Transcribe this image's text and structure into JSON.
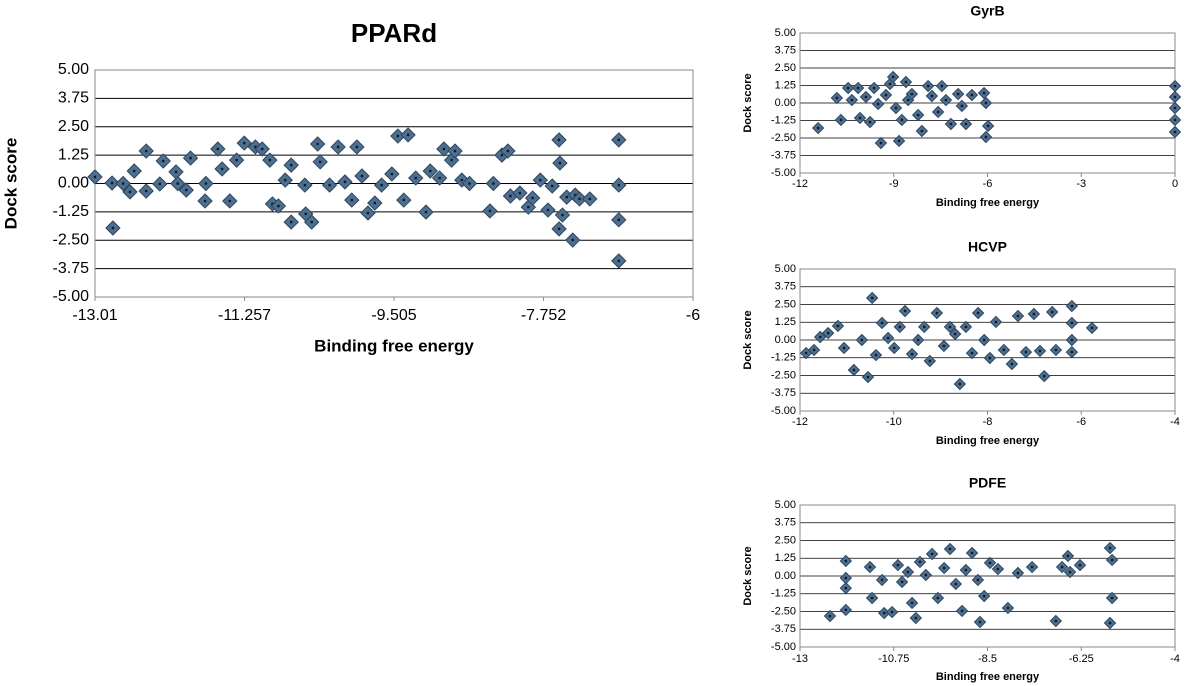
{
  "chart_data": [
    {
      "type": "scatter",
      "title": "PPARd",
      "x_label": "Binding free energy",
      "y_label": "Dock score",
      "color": "#4f6f8f",
      "grid": true,
      "xlim": [
        -13.01,
        -6
      ],
      "ylim": [
        -5,
        5
      ],
      "xticks": [
        -13.01,
        -11.257,
        -9.505,
        -7.752,
        -6
      ],
      "yticks": [
        {
          "value": 5,
          "label": "5.00"
        },
        3.75,
        {
          "value": 2.5,
          "label": "2.50"
        },
        1.25,
        {
          "value": 0,
          "label": "0.00"
        },
        -1.25,
        {
          "value": -2.5,
          "label": "-2.50"
        },
        -3.75,
        {
          "value": -5,
          "label": "-5.00"
        }
      ],
      "x": [
        -13.01,
        -12.8,
        -12.81,
        -12.68,
        -12.6,
        -12.55,
        -12.41,
        -12.41,
        -12.25,
        -12.21,
        -12.06,
        -12.04,
        -11.94,
        -11.89,
        -11.72,
        -11.71,
        -11.57,
        -11.52,
        -11.43,
        -11.35,
        -11.26,
        -11.13,
        -11.05,
        -10.96,
        -10.93,
        -10.86,
        -10.78,
        -10.71,
        -10.71,
        -10.55,
        -10.54,
        -10.47,
        -10.4,
        -10.37,
        -10.26,
        -10.16,
        -10.08,
        -10.0,
        -9.94,
        -9.88,
        -9.81,
        -9.73,
        -9.65,
        -9.53,
        -9.46,
        -9.34,
        -9.39,
        -9.25,
        -9.13,
        -9.08,
        -8.97,
        -8.92,
        -8.83,
        -8.79,
        -8.71,
        -8.62,
        -8.38,
        -8.34,
        -8.24,
        -8.17,
        -8.14,
        -8.03,
        -7.93,
        -7.88,
        -7.79,
        -7.7,
        -7.65,
        -7.57,
        -7.57,
        -7.56,
        -7.53,
        -7.48,
        -7.41,
        -7.38,
        -7.33,
        -7.21,
        -6.87,
        -6.87,
        -6.87,
        -6.87
      ],
      "y": [
        0.29,
        -1.96,
        0.02,
        0,
        -0.37,
        0.55,
        1.43,
        -0.33,
        -0.02,
        0.99,
        0.51,
        0,
        -0.29,
        1.12,
        -0.77,
        0,
        1.52,
        0.64,
        -0.77,
        1.03,
        1.78,
        1.61,
        1.52,
        1.03,
        -0.9,
        -0.99,
        0.15,
        0.81,
        -1.7,
        -0.07,
        -1.34,
        -1.7,
        1.74,
        0.95,
        -0.07,
        1.61,
        0.07,
        -0.73,
        1.61,
        0.33,
        -1.3,
        -0.86,
        -0.07,
        0.42,
        2.09,
        2.14,
        -0.73,
        0.24,
        -1.26,
        0.55,
        0.24,
        1.52,
        1.03,
        1.43,
        0.15,
        0,
        -1.21,
        0,
        1.25,
        1.43,
        -0.55,
        -0.42,
        -1.04,
        -0.64,
        0.15,
        -1.17,
        -0.11,
        1.92,
        -2.0,
        0.9,
        -1.39,
        -0.6,
        -2.49,
        -0.51,
        -0.68,
        -0.68,
        1.92,
        -0.07,
        -1.6,
        -3.41
      ]
    },
    {
      "type": "scatter",
      "title": "GyrB",
      "x_label": "Binding free energy",
      "y_label": "Dock score",
      "color": "#4f6f8f",
      "grid": true,
      "xlim": [
        -12,
        0
      ],
      "ylim": [
        -5,
        5
      ],
      "xticks": [
        -12,
        -9,
        -6,
        -3,
        0
      ],
      "yticks": [
        {
          "value": 5,
          "label": "5.00"
        },
        3.75,
        {
          "value": 2.5,
          "label": "2.50"
        },
        1.25,
        {
          "value": 0,
          "label": "0.00"
        },
        -1.25,
        {
          "value": -2.5,
          "label": "-2.50"
        },
        -3.75,
        {
          "value": -5,
          "label": "-5.00"
        }
      ],
      "x": [
        -11.42,
        -10.82,
        -10.69,
        -10.46,
        -10.34,
        -10.14,
        -10.08,
        -9.89,
        -9.76,
        -9.63,
        -9.5,
        -9.41,
        -9.25,
        -9.12,
        -9.02,
        -8.93,
        -8.83,
        -8.74,
        -8.61,
        -8.54,
        -8.42,
        -8.22,
        -8.1,
        -7.9,
        -7.78,
        -7.58,
        -7.46,
        -7.33,
        -7.17,
        -6.94,
        -6.82,
        -6.69,
        -6.5,
        -6.11,
        -6.05,
        -5.98,
        -6.05,
        0,
        0,
        0,
        0,
        0
      ],
      "y": [
        -1.79,
        0.36,
        -1.21,
        1.07,
        0.21,
        1.07,
        -1.07,
        0.43,
        -1.36,
        1.07,
        -0.07,
        -2.86,
        0.57,
        1.36,
        1.86,
        -0.36,
        -2.71,
        -1.21,
        1.5,
        0.21,
        0.64,
        -0.86,
        -2.0,
        1.21,
        0.5,
        -0.64,
        1.21,
        0.21,
        -1.5,
        0.64,
        -0.21,
        -1.5,
        0.57,
        0.71,
        0,
        -1.64,
        -2.43,
        1.21,
        0.43,
        -0.36,
        -1.21,
        -2.07
      ]
    },
    {
      "type": "scatter",
      "title": "HCVP",
      "x_label": "Binding free energy",
      "y_label": "Dock score",
      "color": "#4f6f8f",
      "grid": true,
      "xlim": [
        -12,
        -4
      ],
      "ylim": [
        -5,
        5
      ],
      "xticks": [
        -12,
        -10,
        -8,
        -6,
        -4
      ],
      "yticks": [
        {
          "value": 5,
          "label": "5.00"
        },
        3.75,
        {
          "value": 2.5,
          "label": "2.50"
        },
        1.25,
        {
          "value": 0,
          "label": "0.00"
        },
        -1.25,
        {
          "value": -2.5,
          "label": "-2.50"
        },
        -3.75,
        {
          "value": -5,
          "label": "-5.00"
        }
      ],
      "x": [
        -11.87,
        -11.7,
        -11.57,
        -11.4,
        -11.19,
        -11.06,
        -10.85,
        -10.68,
        -10.55,
        -10.46,
        -10.38,
        -10.25,
        -10.12,
        -9.99,
        -9.87,
        -9.76,
        -9.61,
        -9.48,
        -9.35,
        -9.23,
        -9.08,
        -8.93,
        -8.8,
        -8.69,
        -8.59,
        -8.46,
        -8.33,
        -8.2,
        -8.07,
        -7.95,
        -7.82,
        -7.65,
        -7.48,
        -7.35,
        -7.18,
        -7.01,
        -6.88,
        -6.79,
        -6.62,
        -6.54,
        -6.2,
        -6.2,
        -6.2,
        -6.2,
        -5.77
      ],
      "y": [
        -0.92,
        -0.7,
        0.21,
        0.49,
        0.99,
        -0.56,
        -2.11,
        0,
        -2.61,
        2.96,
        -1.06,
        1.2,
        0.14,
        -0.56,
        0.92,
        2.04,
        -0.99,
        0,
        0.92,
        -1.48,
        1.9,
        -0.42,
        0.92,
        0.42,
        -3.1,
        0.92,
        -0.92,
        1.9,
        0,
        -1.27,
        1.27,
        -0.7,
        -1.69,
        1.69,
        -0.85,
        1.83,
        -0.77,
        -2.54,
        1.97,
        -0.7,
        2.39,
        1.2,
        0,
        -0.85,
        0.85
      ]
    },
    {
      "type": "scatter",
      "title": "PDFE",
      "x_label": "Binding free energy",
      "y_label": "Dock score",
      "color": "#4f6f8f",
      "grid": true,
      "xlim": [
        -13,
        -4
      ],
      "ylim": [
        -5,
        5
      ],
      "xticks": [
        -13,
        -10.75,
        -8.5,
        -6.25,
        -4
      ],
      "yticks": [
        {
          "value": 5,
          "label": "5.00"
        },
        3.75,
        {
          "value": 2.5,
          "label": "2.50"
        },
        1.25,
        {
          "value": 0,
          "label": "0.00"
        },
        -1.25,
        {
          "value": -2.5,
          "label": "-2.50"
        },
        -3.75,
        {
          "value": -5,
          "label": "-5.00"
        }
      ],
      "x": [
        -12.28,
        -11.9,
        -11.9,
        -11.9,
        -11.9,
        -11.32,
        -11.27,
        -11.03,
        -10.98,
        -10.79,
        -10.65,
        -10.55,
        -10.41,
        -10.31,
        -10.22,
        -10.12,
        -9.98,
        -9.83,
        -9.69,
        -9.54,
        -9.4,
        -9.26,
        -9.11,
        -9.02,
        -8.87,
        -8.73,
        -8.68,
        -8.58,
        -8.44,
        -8.25,
        -8.01,
        -7.77,
        -7.43,
        -6.86,
        -6.71,
        -6.57,
        -6.52,
        -6.28,
        -5.56,
        -5.51,
        -5.51,
        -5.56
      ],
      "y": [
        -2.82,
        1.06,
        -0.14,
        -0.85,
        -2.39,
        0.63,
        -1.55,
        -0.28,
        -2.61,
        -2.54,
        0.77,
        -0.42,
        0.28,
        -1.9,
        -2.96,
        0.99,
        0.07,
        1.55,
        -1.55,
        0.56,
        1.9,
        -0.56,
        -2.46,
        0.42,
        1.62,
        -0.28,
        -3.24,
        -1.41,
        0.92,
        0.49,
        -2.25,
        0.21,
        0.63,
        -3.17,
        0.63,
        1.41,
        0.28,
        0.77,
        1.97,
        1.13,
        -1.55,
        -3.31
      ]
    }
  ]
}
